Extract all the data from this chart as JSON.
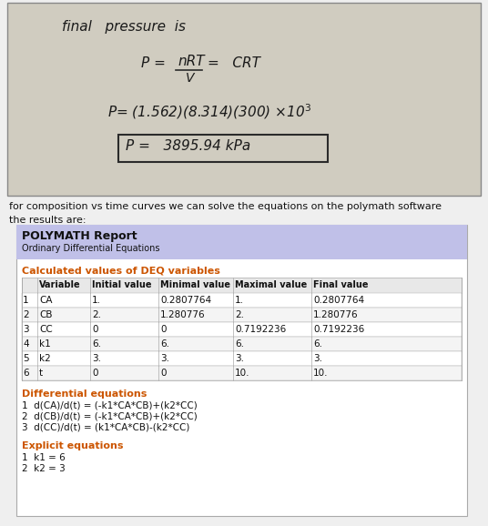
{
  "bg_color": "#efefef",
  "photo_bg": "#d0ccc0",
  "photo_border": "#888888",
  "title_text": "final   pressure  is",
  "text1": "for composition vs time curves we can solve the equations on the polymath software",
  "text2": "the results are:",
  "polymath_header": "POLYMATH Report",
  "polymath_subheader": "Ordinary Differential Equations",
  "calc_header": "Calculated values of DEQ variables",
  "table_headers": [
    "Variable",
    "Initial value",
    "Minimal value",
    "Maximal value",
    "Final value"
  ],
  "table_rows": [
    [
      "1",
      "CA",
      "1.",
      "0.2807764",
      "1.",
      "0.2807764"
    ],
    [
      "2",
      "CB",
      "2.",
      "1.280776",
      "2.",
      "1.280776"
    ],
    [
      "3",
      "CC",
      "0",
      "0",
      "0.7192236",
      "0.7192236"
    ],
    [
      "4",
      "k1",
      "6.",
      "6.",
      "6.",
      "6."
    ],
    [
      "5",
      "k2",
      "3.",
      "3.",
      "3.",
      "3."
    ],
    [
      "6",
      "t",
      "0",
      "0",
      "10.",
      "10."
    ]
  ],
  "diff_eq_header": "Differential equations",
  "diff_eqs": [
    "1  d(CA)/d(t) = (-k1*CA*CB)+(k2*CC)",
    "2  d(CB)/d(t) = (-k1*CA*CB)+(k2*CC)",
    "3  d(CC)/d(t) = (k1*CA*CB)-(k2*CC)"
  ],
  "explicit_header": "Explicit equations",
  "explicit_eqs": [
    "1  k1 = 6",
    "2  k2 = 3"
  ],
  "header_bg": "#c0c0e8",
  "orange": "#cc5500",
  "table_header_bg": "#e8e8e8",
  "row_colors": [
    "#ffffff",
    "#f4f4f4"
  ],
  "border_color": "#aaaaaa",
  "white": "#ffffff",
  "polymath_box_border": "#aaaaaa"
}
